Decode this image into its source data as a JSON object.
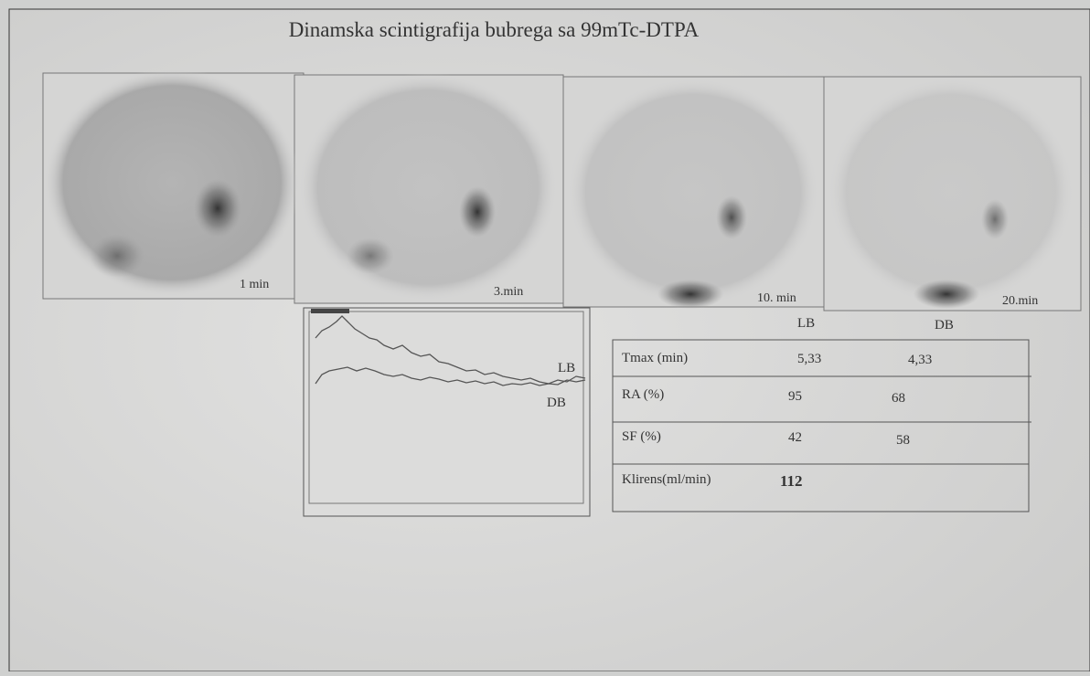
{
  "header": {
    "title": "Dinamska scintigrafija bubrega sa 99mTc-DTPA"
  },
  "images": [
    {
      "label": "1 min"
    },
    {
      "label": "3.min"
    },
    {
      "label": "10. min"
    },
    {
      "label": "20.min"
    }
  ],
  "renogram": {
    "labels": [
      "LB",
      "DB"
    ]
  },
  "table": {
    "columns": [
      "LB",
      "DB"
    ],
    "rows": [
      [
        "Tmax (min)",
        "5,33",
        "4,33"
      ],
      [
        "RA (%)",
        "95",
        "68"
      ],
      [
        "SF (%)",
        "42",
        "58"
      ],
      [
        "Klirens(ml/min)",
        "112"
      ]
    ]
  }
}
